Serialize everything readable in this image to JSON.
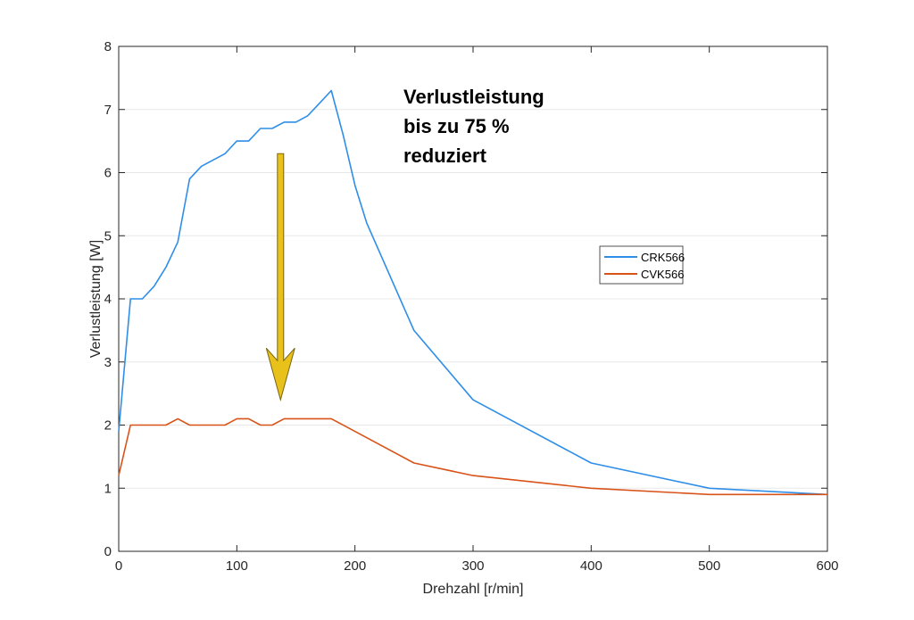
{
  "chart_data": {
    "type": "line",
    "title": "",
    "xlabel": "Drehzahl [r/min]",
    "ylabel": "Verlustleistung [W]",
    "xlim": [
      0,
      600
    ],
    "ylim": [
      0,
      8
    ],
    "xticks": [
      0,
      100,
      200,
      300,
      400,
      500,
      600
    ],
    "yticks": [
      0,
      1,
      2,
      3,
      4,
      5,
      6,
      7,
      8
    ],
    "grid": "horizontal",
    "legend_position": "right",
    "series": [
      {
        "name": "CRK566",
        "color": "#2e8ee8",
        "x": [
          0,
          10,
          20,
          30,
          40,
          50,
          60,
          70,
          80,
          90,
          100,
          110,
          120,
          130,
          140,
          150,
          160,
          170,
          180,
          190,
          200,
          210,
          250,
          300,
          400,
          500,
          600
        ],
        "y": [
          1.9,
          4.0,
          4.0,
          4.2,
          4.5,
          4.9,
          5.9,
          6.1,
          6.2,
          6.3,
          6.5,
          6.5,
          6.7,
          6.7,
          6.8,
          6.8,
          6.9,
          7.1,
          7.3,
          6.6,
          5.8,
          5.2,
          3.5,
          2.4,
          1.4,
          1.0,
          0.9
        ]
      },
      {
        "name": "CVK566",
        "color": "#d95319",
        "x": [
          0,
          10,
          20,
          30,
          40,
          50,
          60,
          70,
          80,
          90,
          100,
          110,
          120,
          130,
          140,
          150,
          160,
          170,
          180,
          250,
          300,
          400,
          500,
          600
        ],
        "y": [
          1.2,
          2.0,
          2.0,
          2.0,
          2.0,
          2.1,
          2.0,
          2.0,
          2.0,
          2.0,
          2.1,
          2.1,
          2.0,
          2.0,
          2.1,
          2.1,
          2.1,
          2.1,
          2.1,
          1.4,
          1.2,
          1.0,
          0.9,
          0.9
        ]
      }
    ],
    "annotations": {
      "text_lines": [
        "Verlustleistung",
        "bis zu 75 %",
        "reduziert"
      ],
      "arrow": {
        "color": "#e8c21a",
        "x": 137,
        "y_from": 6.3,
        "y_to": 2.4
      }
    }
  }
}
